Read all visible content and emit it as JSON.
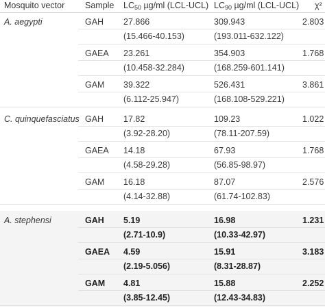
{
  "headers": {
    "vector": "Mosquito vector",
    "sample": "Sample",
    "lc50_pre": "LC",
    "lc50_sub": "50",
    "lc50_post": " µg/ml (LCL-UCL)",
    "lc90_pre": "LC",
    "lc90_sub": "90",
    "lc90_post": " µg/ml (LCL-UCL)",
    "chi": "χ²"
  },
  "groups": [
    {
      "vector": "A. aegypti",
      "rows": [
        {
          "sample": "GAH",
          "lc50": "27.866",
          "lc50_ci": "(15.466-40.153)",
          "lc90": "309.943",
          "lc90_ci": "(193.011-632.122)",
          "chi": "2.803"
        },
        {
          "sample": "GAEA",
          "lc50": "23.261",
          "lc50_ci": "(10.458-32.284)",
          "lc90": "354.903",
          "lc90_ci": "(168.259-601.141)",
          "chi": "1.768"
        },
        {
          "sample": "GAM",
          "lc50": "39.322",
          "lc50_ci": "(6.112-25.947)",
          "lc90": "526.431",
          "lc90_ci": "(168.108-529.221)",
          "chi": "3.861"
        }
      ]
    },
    {
      "vector": "C. quinquefasciatus",
      "rows": [
        {
          "sample": "GAH",
          "lc50": "17.82",
          "lc50_ci": "(3.92-28.20)",
          "lc90": "109.23",
          "lc90_ci": "(78.11-207.59)",
          "chi": "1.022"
        },
        {
          "sample": "GAEA",
          "lc50": "14.18",
          "lc50_ci": "(4.58-29.28)",
          "lc90": "67.93",
          "lc90_ci": "(56.85-98.97)",
          "chi": "1.768"
        },
        {
          "sample": "GAM",
          "lc50": "16.18",
          "lc50_ci": "(4.14-32.88)",
          "lc90": "87.07",
          "lc90_ci": "(61.74-102.83)",
          "chi": "2.576"
        }
      ]
    },
    {
      "vector": "A. stephensi",
      "rows": [
        {
          "sample": "GAH",
          "lc50": "5.19",
          "lc50_ci": "(2.71-10.9)",
          "lc90": "16.98",
          "lc90_ci": "(10.33-42.97)",
          "chi": "1.231"
        },
        {
          "sample": "GAEA",
          "lc50": "4.59",
          "lc50_ci": "(2.19-5.056)",
          "lc90": "15.91",
          "lc90_ci": "(8.31-28.87)",
          "chi": "3.183"
        },
        {
          "sample": "GAM",
          "lc50": "4.81",
          "lc50_ci": "(3.85-12.45)",
          "lc90": "15.88",
          "lc90_ci": "(12.43-34.83)",
          "chi": "2.252"
        }
      ]
    }
  ],
  "style": {
    "row_shade": "#f4f4f4",
    "rule_color": "#e2e2e2"
  }
}
